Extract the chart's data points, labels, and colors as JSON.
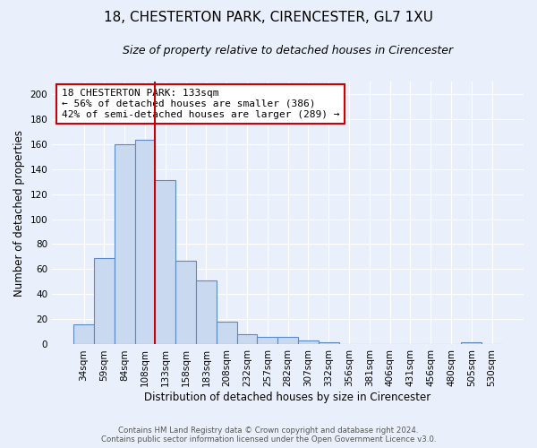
{
  "title": "18, CHESTERTON PARK, CIRENCESTER, GL7 1XU",
  "subtitle": "Size of property relative to detached houses in Cirencester",
  "xlabel": "Distribution of detached houses by size in Cirencester",
  "ylabel": "Number of detached properties",
  "footer_line1": "Contains HM Land Registry data © Crown copyright and database right 2024.",
  "footer_line2": "Contains public sector information licensed under the Open Government Licence v3.0.",
  "bin_labels": [
    "34sqm",
    "59sqm",
    "84sqm",
    "108sqm",
    "133sqm",
    "158sqm",
    "183sqm",
    "208sqm",
    "232sqm",
    "257sqm",
    "282sqm",
    "307sqm",
    "332sqm",
    "356sqm",
    "381sqm",
    "406sqm",
    "431sqm",
    "456sqm",
    "480sqm",
    "505sqm",
    "530sqm"
  ],
  "bar_heights": [
    16,
    69,
    160,
    163,
    131,
    67,
    51,
    18,
    8,
    6,
    6,
    3,
    2,
    0,
    0,
    0,
    0,
    0,
    0,
    2,
    0
  ],
  "bar_color": "#c9d9f0",
  "bar_edge_color": "#5b8ac5",
  "vline_x": 3.5,
  "vline_color": "#cc0000",
  "annotation_line1": "18 CHESTERTON PARK: 133sqm",
  "annotation_line2": "← 56% of detached houses are smaller (386)",
  "annotation_line3": "42% of semi-detached houses are larger (289) →",
  "annotation_box_color": "#ffffff",
  "annotation_box_edge": "#cc0000",
  "ylim": [
    0,
    210
  ],
  "yticks": [
    0,
    20,
    40,
    60,
    80,
    100,
    120,
    140,
    160,
    180,
    200
  ],
  "background_color": "#eaf0fb",
  "grid_color": "#ffffff",
  "title_fontsize": 11,
  "subtitle_fontsize": 9,
  "axis_label_fontsize": 8.5,
  "tick_fontsize": 7.5,
  "annotation_fontsize": 8
}
